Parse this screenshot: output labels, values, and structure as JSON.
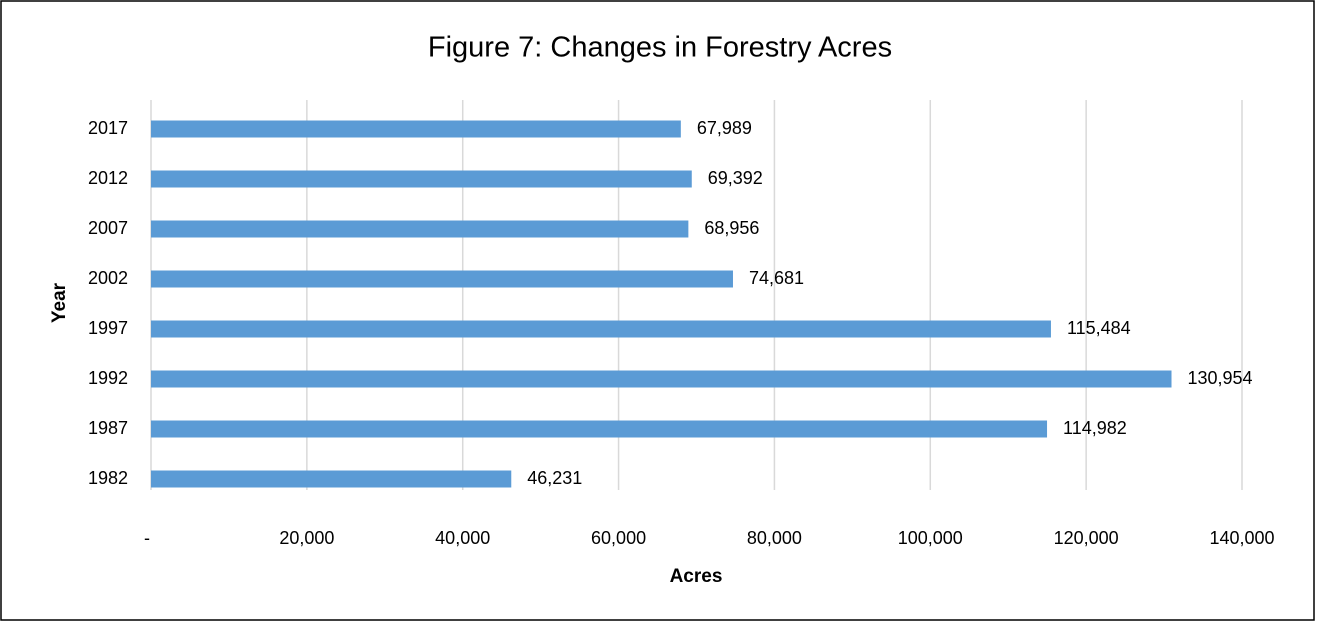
{
  "chart_data": {
    "type": "bar",
    "orientation": "horizontal",
    "title": "Figure 7: Changes in Forestry Acres",
    "xlabel": "Acres",
    "ylabel": "Year",
    "categories": [
      "2017",
      "2012",
      "2007",
      "2002",
      "1997",
      "1992",
      "1987",
      "1982"
    ],
    "values": [
      67989,
      69392,
      68956,
      74681,
      115484,
      130954,
      114982,
      46231
    ],
    "value_labels": [
      "67,989",
      "69,392",
      "68,956",
      "74,681",
      "115,484",
      "130,954",
      "114,982",
      "46,231"
    ],
    "color": "#5b9bd5",
    "xlim": [
      0,
      140000
    ],
    "xticks": [
      {
        "value": 0,
        "label": "-"
      },
      {
        "value": 20000,
        "label": "20,000"
      },
      {
        "value": 40000,
        "label": "40,000"
      },
      {
        "value": 60000,
        "label": "60,000"
      },
      {
        "value": 80000,
        "label": "80,000"
      },
      {
        "value": 100000,
        "label": "100,000"
      },
      {
        "value": 120000,
        "label": "120,000"
      },
      {
        "value": 140000,
        "label": "140,000"
      }
    ],
    "grid": true
  }
}
